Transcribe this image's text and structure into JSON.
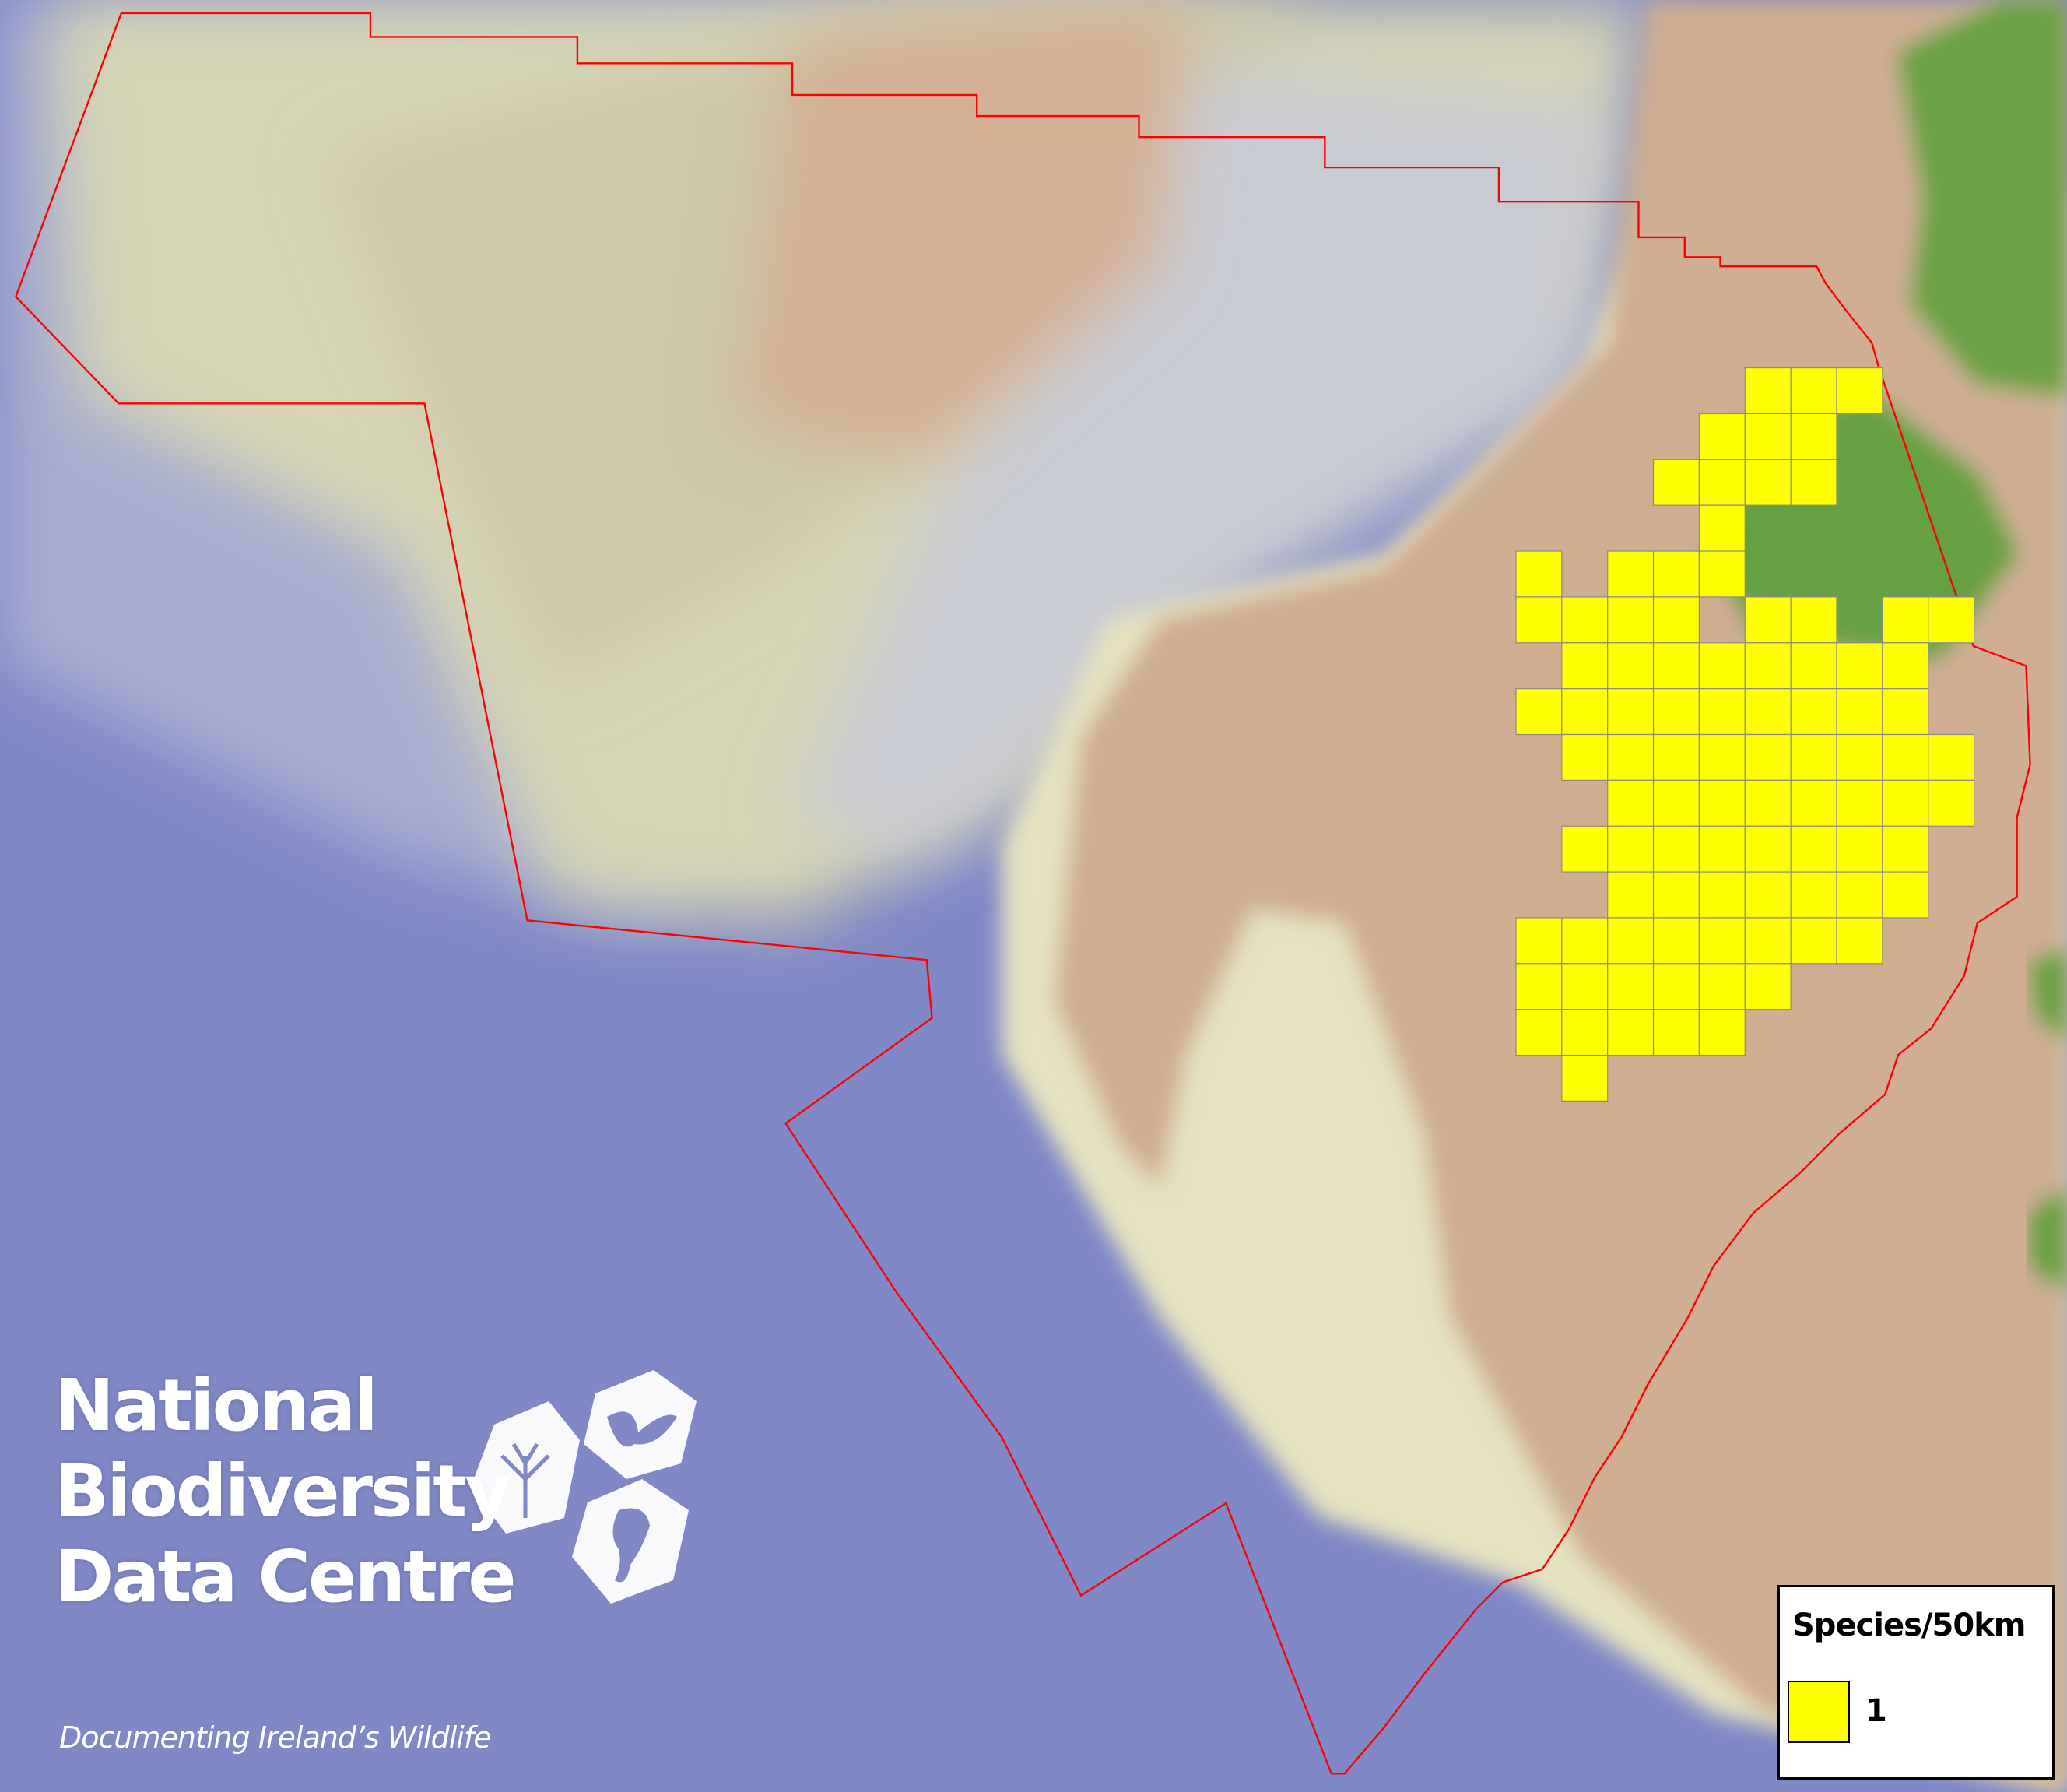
{
  "map": {
    "colors": {
      "presence": "#ffff00",
      "grid_stroke": "#8a8a8a",
      "boundary": "#ff0000",
      "deep_ocean": "#7f86c4",
      "shelf": "#d9d8b8",
      "land": "#cfae92",
      "vegetation": "#5f9a3e"
    },
    "occupied_squares": [
      [
        5,
        6,
        7
      ],
      [
        4,
        5,
        6
      ],
      [
        3,
        4,
        5,
        6
      ],
      [
        4
      ],
      [
        0,
        2,
        3,
        4
      ],
      [
        0,
        1,
        2,
        3,
        5,
        6,
        8,
        9
      ],
      [
        1,
        2,
        3,
        4,
        5,
        6,
        7,
        8
      ],
      [
        0,
        1,
        2,
        3,
        4,
        5,
        6,
        7,
        8
      ],
      [
        1,
        2,
        3,
        4,
        5,
        6,
        7,
        8,
        9
      ],
      [
        2,
        3,
        4,
        5,
        6,
        7,
        8,
        9
      ],
      [
        1,
        2,
        3,
        4,
        5,
        6,
        7,
        8
      ],
      [
        2,
        3,
        4,
        5,
        6,
        7,
        8
      ],
      [
        0,
        1,
        2,
        3,
        4,
        5,
        6,
        7
      ],
      [
        0,
        1,
        2,
        3,
        4,
        5
      ],
      [
        0,
        1,
        2,
        3,
        4
      ],
      [
        1
      ]
    ]
  },
  "legend": {
    "title": "Species/50km",
    "items": [
      {
        "label": "1",
        "color": "#ffff00"
      }
    ]
  },
  "logo": {
    "line1": "National",
    "line2": "Biodiversity",
    "line3": "Data Centre",
    "tagline": "Documenting Ireland’s Wildlife",
    "icons": [
      "tree-icon",
      "butterfly-icon",
      "seahorse-icon"
    ]
  }
}
